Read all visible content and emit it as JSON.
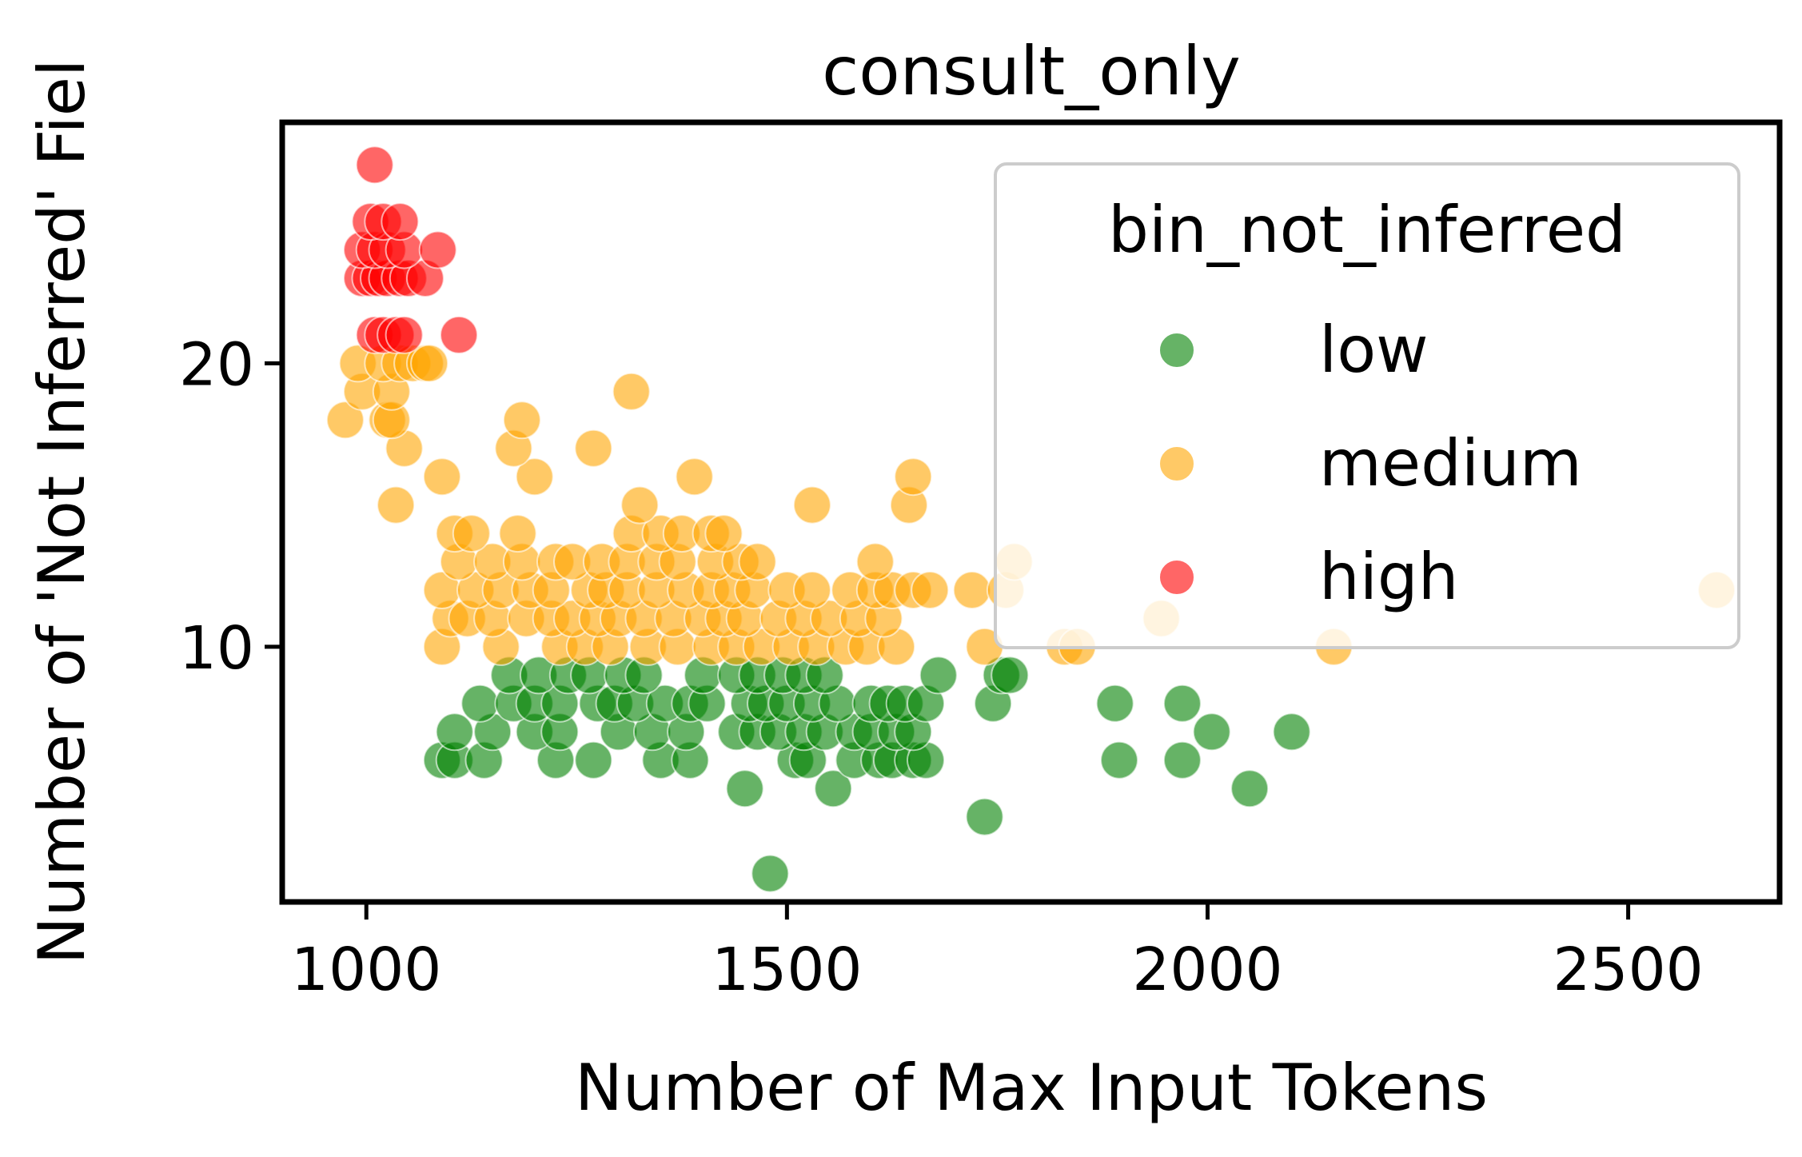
{
  "chart_data": {
    "type": "scatter",
    "title": "consult_only",
    "xlabel": "Number of Max Input Tokens",
    "ylabel": "Number of 'Not Inferred' Fiel",
    "xlim": [
      900,
      2680
    ],
    "ylim": [
      1,
      28.5
    ],
    "xticks": [
      1000,
      1500,
      2000,
      2500
    ],
    "yticks": [
      10,
      20
    ],
    "grid": false,
    "legend": {
      "title": "bin_not_inferred",
      "placement": "top-right"
    },
    "colors": {
      "low": "#008000",
      "medium": "#FFA500",
      "high": "#FF0000"
    },
    "point_alpha": 0.6,
    "series": [
      {
        "name": "low",
        "points": [
          [
            1480,
            2
          ],
          [
            1735,
            4
          ],
          [
            1450,
            5
          ],
          [
            1555,
            5
          ],
          [
            2050,
            5
          ],
          [
            1090,
            6
          ],
          [
            1105,
            6
          ],
          [
            1140,
            6
          ],
          [
            1225,
            6
          ],
          [
            1270,
            6
          ],
          [
            1350,
            6
          ],
          [
            1385,
            6
          ],
          [
            1510,
            6
          ],
          [
            1525,
            6
          ],
          [
            1580,
            6
          ],
          [
            1610,
            6
          ],
          [
            1625,
            6
          ],
          [
            1650,
            6
          ],
          [
            1665,
            6
          ],
          [
            1895,
            6
          ],
          [
            1970,
            6
          ],
          [
            1105,
            7
          ],
          [
            1150,
            7
          ],
          [
            1200,
            7
          ],
          [
            1230,
            7
          ],
          [
            1300,
            7
          ],
          [
            1340,
            7
          ],
          [
            1380,
            7
          ],
          [
            1440,
            7
          ],
          [
            1465,
            7
          ],
          [
            1490,
            7
          ],
          [
            1520,
            7
          ],
          [
            1545,
            7
          ],
          [
            1580,
            7
          ],
          [
            1600,
            7
          ],
          [
            1630,
            7
          ],
          [
            1650,
            7
          ],
          [
            2005,
            7
          ],
          [
            2100,
            7
          ],
          [
            1135,
            8
          ],
          [
            1175,
            8
          ],
          [
            1200,
            8
          ],
          [
            1230,
            8
          ],
          [
            1275,
            8
          ],
          [
            1295,
            8
          ],
          [
            1320,
            8
          ],
          [
            1355,
            8
          ],
          [
            1385,
            8
          ],
          [
            1405,
            8
          ],
          [
            1455,
            8
          ],
          [
            1475,
            8
          ],
          [
            1500,
            8
          ],
          [
            1530,
            8
          ],
          [
            1560,
            8
          ],
          [
            1600,
            8
          ],
          [
            1620,
            8
          ],
          [
            1640,
            8
          ],
          [
            1665,
            8
          ],
          [
            1745,
            8
          ],
          [
            1890,
            8
          ],
          [
            1970,
            8
          ],
          [
            1170,
            9
          ],
          [
            1205,
            9
          ],
          [
            1240,
            9
          ],
          [
            1265,
            9
          ],
          [
            1305,
            9
          ],
          [
            1330,
            9
          ],
          [
            1400,
            9
          ],
          [
            1440,
            9
          ],
          [
            1465,
            9
          ],
          [
            1495,
            9
          ],
          [
            1520,
            9
          ],
          [
            1545,
            9
          ],
          [
            1680,
            9
          ],
          [
            1755,
            9
          ],
          [
            1765,
            9
          ]
        ]
      },
      {
        "name": "medium",
        "points": [
          [
            1090,
            10
          ],
          [
            1160,
            10
          ],
          [
            1230,
            10
          ],
          [
            1260,
            10
          ],
          [
            1290,
            10
          ],
          [
            1335,
            10
          ],
          [
            1370,
            10
          ],
          [
            1410,
            10
          ],
          [
            1440,
            10
          ],
          [
            1470,
            10
          ],
          [
            1505,
            10
          ],
          [
            1535,
            10
          ],
          [
            1570,
            10
          ],
          [
            1595,
            10
          ],
          [
            1630,
            10
          ],
          [
            1735,
            10
          ],
          [
            1830,
            10
          ],
          [
            1845,
            10
          ],
          [
            2150,
            10
          ],
          [
            1100,
            11
          ],
          [
            1120,
            11
          ],
          [
            1150,
            11
          ],
          [
            1190,
            11
          ],
          [
            1220,
            11
          ],
          [
            1245,
            11
          ],
          [
            1275,
            11
          ],
          [
            1300,
            11
          ],
          [
            1330,
            11
          ],
          [
            1365,
            11
          ],
          [
            1400,
            11
          ],
          [
            1425,
            11
          ],
          [
            1450,
            11
          ],
          [
            1490,
            11
          ],
          [
            1520,
            11
          ],
          [
            1550,
            11
          ],
          [
            1585,
            11
          ],
          [
            1615,
            11
          ],
          [
            1945,
            11
          ],
          [
            1090,
            12
          ],
          [
            1130,
            12
          ],
          [
            1160,
            12
          ],
          [
            1195,
            12
          ],
          [
            1220,
            12
          ],
          [
            1265,
            12
          ],
          [
            1285,
            12
          ],
          [
            1310,
            12
          ],
          [
            1345,
            12
          ],
          [
            1380,
            12
          ],
          [
            1410,
            12
          ],
          [
            1435,
            12
          ],
          [
            1460,
            12
          ],
          [
            1500,
            12
          ],
          [
            1530,
            12
          ],
          [
            1575,
            12
          ],
          [
            1605,
            12
          ],
          [
            1625,
            12
          ],
          [
            1650,
            12
          ],
          [
            1670,
            12
          ],
          [
            1720,
            12
          ],
          [
            1760,
            12
          ],
          [
            2605,
            12
          ],
          [
            1110,
            13
          ],
          [
            1150,
            13
          ],
          [
            1185,
            13
          ],
          [
            1225,
            13
          ],
          [
            1245,
            13
          ],
          [
            1280,
            13
          ],
          [
            1310,
            13
          ],
          [
            1345,
            13
          ],
          [
            1370,
            13
          ],
          [
            1415,
            13
          ],
          [
            1445,
            13
          ],
          [
            1465,
            13
          ],
          [
            1605,
            13
          ],
          [
            1770,
            13
          ],
          [
            1105,
            14
          ],
          [
            1125,
            14
          ],
          [
            1180,
            14
          ],
          [
            1315,
            14
          ],
          [
            1350,
            14
          ],
          [
            1375,
            14
          ],
          [
            1410,
            14
          ],
          [
            1425,
            14
          ],
          [
            1035,
            15
          ],
          [
            1325,
            15
          ],
          [
            1530,
            15
          ],
          [
            1645,
            15
          ],
          [
            1090,
            16
          ],
          [
            1200,
            16
          ],
          [
            1390,
            16
          ],
          [
            1650,
            16
          ],
          [
            1045,
            17
          ],
          [
            1175,
            17
          ],
          [
            1270,
            17
          ],
          [
            975,
            18
          ],
          [
            1025,
            18
          ],
          [
            1030,
            18
          ],
          [
            1185,
            18
          ],
          [
            995,
            19
          ],
          [
            1030,
            19
          ],
          [
            1315,
            19
          ],
          [
            990,
            20
          ],
          [
            1020,
            20
          ],
          [
            1040,
            20
          ],
          [
            1055,
            20
          ],
          [
            1070,
            20
          ],
          [
            1075,
            20
          ]
        ]
      },
      {
        "name": "high",
        "points": [
          [
            1010,
            21
          ],
          [
            1020,
            21
          ],
          [
            1035,
            21
          ],
          [
            1045,
            21
          ],
          [
            1110,
            21
          ],
          [
            995,
            23
          ],
          [
            1005,
            23
          ],
          [
            1015,
            23
          ],
          [
            1025,
            23
          ],
          [
            1040,
            23
          ],
          [
            1050,
            23
          ],
          [
            1070,
            23
          ],
          [
            995,
            24
          ],
          [
            1010,
            24
          ],
          [
            1025,
            24
          ],
          [
            1045,
            24
          ],
          [
            1085,
            24
          ],
          [
            1005,
            25
          ],
          [
            1020,
            25
          ],
          [
            1040,
            25
          ],
          [
            1010,
            27
          ]
        ]
      }
    ]
  }
}
